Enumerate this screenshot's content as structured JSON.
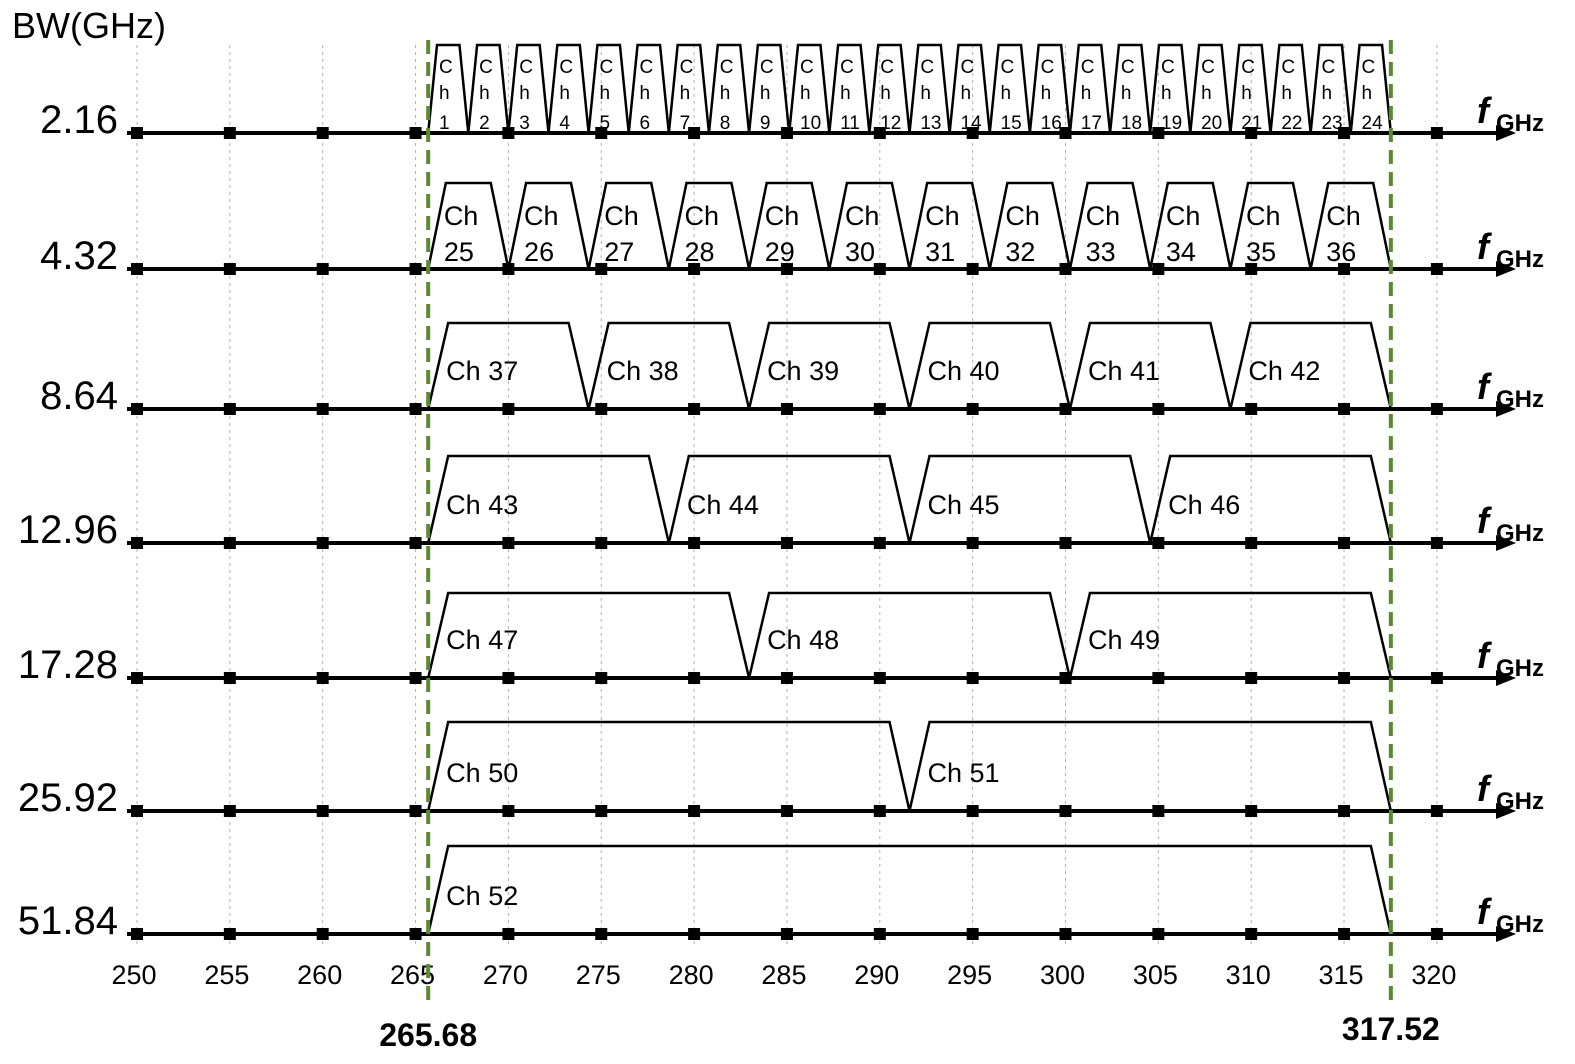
{
  "y_axis_label": "BW(GHz)",
  "x_unit_label": {
    "main": "f",
    "sub": "GHz"
  },
  "x_ticks": [
    "250",
    "255",
    "260",
    "265",
    "270",
    "275",
    "280",
    "285",
    "290",
    "295",
    "300",
    "305",
    "310",
    "315",
    "320"
  ],
  "band_edges": [
    {
      "label": "265.68",
      "freq": 265.68
    },
    {
      "label": "317.52",
      "freq": 317.52
    }
  ],
  "rows": [
    {
      "bw": "2.16",
      "bw_value": 2.16,
      "first": 1,
      "count": 24,
      "stacked": true,
      "names": [
        "1",
        "2",
        "3",
        "4",
        "5",
        "6",
        "7",
        "8",
        "9",
        "10",
        "11",
        "12",
        "13",
        "14",
        "15",
        "16",
        "17",
        "18",
        "19",
        "20",
        "21",
        "22",
        "23",
        "24"
      ]
    },
    {
      "bw": "4.32",
      "bw_value": 4.32,
      "first": 25,
      "count": 12,
      "two_line": true,
      "names": [
        "25",
        "26",
        "27",
        "28",
        "29",
        "30",
        "31",
        "32",
        "33",
        "34",
        "35",
        "36"
      ]
    },
    {
      "bw": "8.64",
      "bw_value": 8.64,
      "first": 37,
      "count": 6,
      "names": [
        "Ch 37",
        "Ch 38",
        "Ch 39",
        "Ch 40",
        "Ch 41",
        "Ch 42"
      ]
    },
    {
      "bw": "12.96",
      "bw_value": 12.96,
      "first": 43,
      "count": 4,
      "names": [
        "Ch 43",
        "Ch 44",
        "Ch 45",
        "Ch 46"
      ]
    },
    {
      "bw": "17.28",
      "bw_value": 17.28,
      "first": 47,
      "count": 3,
      "names": [
        "Ch 47",
        "Ch 48",
        "Ch 49"
      ]
    },
    {
      "bw": "25.92",
      "bw_value": 25.92,
      "first": 50,
      "count": 2,
      "names": [
        "Ch 50",
        "Ch 51"
      ]
    },
    {
      "bw": "51.84",
      "bw_value": 51.84,
      "first": 52,
      "count": 1,
      "names": [
        "Ch 52"
      ]
    }
  ],
  "channel_prefix": "Ch",
  "stacked_prefix": [
    "C",
    "h"
  ],
  "colors": {
    "band_edge": "#5a8a32",
    "axis": "#000000",
    "grid": "#b0b0b0"
  }
}
